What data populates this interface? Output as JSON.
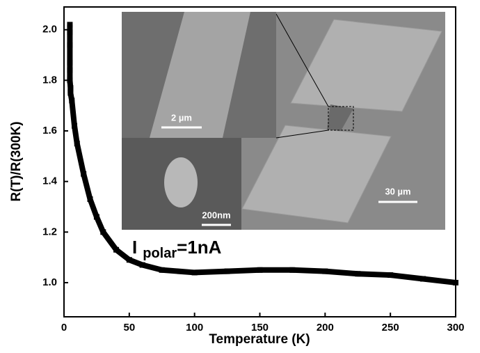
{
  "chart_data": {
    "type": "line",
    "x_label": "Temperature (K)",
    "y_label": "R(T)/R(300K)",
    "x": [
      4.5,
      4.5,
      4.5,
      4.5,
      4.5,
      4.5,
      5,
      5,
      6,
      8,
      10,
      15,
      20,
      25,
      30,
      40,
      50,
      60,
      75,
      100,
      125,
      150,
      175,
      200,
      225,
      250,
      275,
      300
    ],
    "series": [
      {
        "color": "#000000",
        "values": [
          2.02,
          1.99,
          1.94,
          1.87,
          1.84,
          1.8,
          1.77,
          1.75,
          1.72,
          1.62,
          1.55,
          1.43,
          1.33,
          1.26,
          1.2,
          1.13,
          1.09,
          1.07,
          1.05,
          1.04,
          1.045,
          1.05,
          1.05,
          1.045,
          1.035,
          1.03,
          1.015,
          1.0
        ]
      }
    ],
    "xlim": [
      0,
      300
    ],
    "xticks": [
      0,
      50,
      100,
      150,
      200,
      250,
      300
    ],
    "ylim": [
      0.865,
      2.09
    ],
    "yticks": [
      {
        "value": 1,
        "label": "1.0"
      },
      1.2,
      1.4,
      1.6,
      1.8,
      {
        "value": 2,
        "label": "2.0"
      }
    ],
    "annotation": {
      "main": "I",
      "sub": "polar",
      "rest": "=1nA"
    },
    "insets": {
      "top_scale": "2 µm",
      "bottom_scale": "200nm",
      "right_scale": "30 µm"
    }
  }
}
